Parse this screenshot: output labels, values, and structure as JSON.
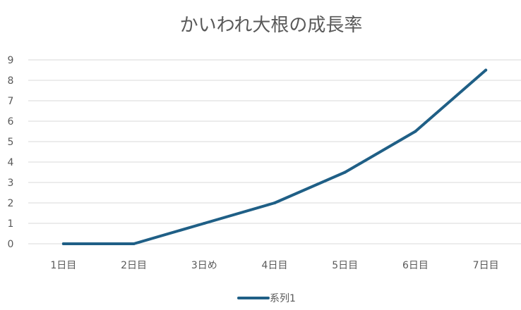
{
  "chart_data": {
    "type": "line",
    "title": "かいわれ大根の成長率",
    "categories": [
      "1日目",
      "2日目",
      "3日め",
      "4日目",
      "5日目",
      "6日目",
      "7日目"
    ],
    "series": [
      {
        "name": "系列1",
        "values": [
          0,
          0,
          1,
          2,
          3.5,
          5.5,
          8.5
        ],
        "color": "#1f5f86"
      }
    ],
    "ylim": [
      0,
      9
    ],
    "yticks": [
      "0",
      "1",
      "2",
      "3",
      "4",
      "5",
      "6",
      "7",
      "8",
      "9"
    ],
    "grid": true,
    "legend_position": "bottom"
  }
}
